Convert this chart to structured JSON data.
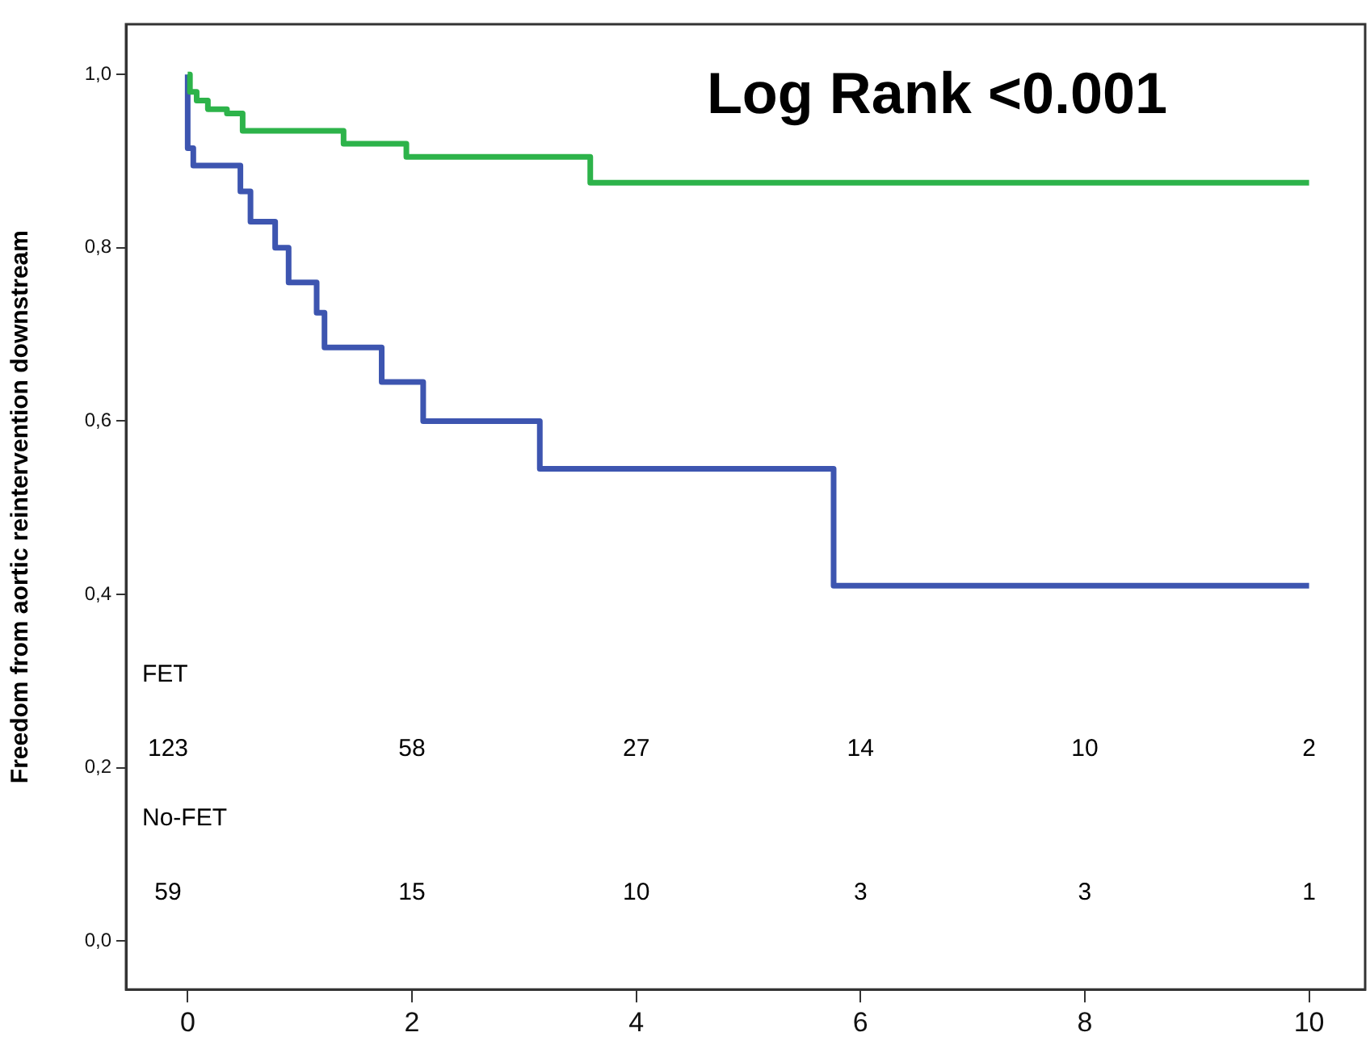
{
  "chart_data": {
    "type": "step",
    "ylabel": "Freedom from aortic reintervention downstream",
    "xlim": [
      -0.55,
      10.5
    ],
    "xticks": [
      0,
      2,
      4,
      6,
      8,
      10
    ],
    "ylim": [
      -0.056,
      1.058
    ],
    "yticks": [
      {
        "value": 0,
        "label": "0,0"
      },
      {
        "value": 0.2,
        "label": "0,2"
      },
      {
        "value": 0.4,
        "label": "0,4"
      },
      {
        "value": 0.6,
        "label": "0,6"
      },
      {
        "value": 0.8,
        "label": "0,8"
      },
      {
        "value": 1,
        "label": "1,0"
      }
    ],
    "grid": false,
    "legend": false,
    "line_style": "solid",
    "marker": "none",
    "series": [
      {
        "color": "#2db34a",
        "x": [
          0,
          0.02,
          0.08,
          0.18,
          0.35,
          0.49,
          1.39,
          1.95,
          3.59,
          10
        ],
        "values": [
          1,
          0.98,
          0.97,
          0.96,
          0.955,
          0.935,
          0.92,
          0.905,
          0.875,
          0.875
        ]
      },
      {
        "color": "#3d55b0",
        "x": [
          0,
          0,
          0.05,
          0.47,
          0.56,
          0.78,
          0.9,
          1.15,
          1.22,
          1.73,
          2.1,
          3.14,
          5.76,
          10
        ],
        "values": [
          1,
          0.915,
          0.895,
          0.865,
          0.83,
          0.8,
          0.76,
          0.725,
          0.685,
          0.645,
          0.6,
          0.545,
          0.41,
          0.41
        ]
      }
    ],
    "annotations": [
      "Log Rank <0.001",
      "FET",
      "123",
      "58",
      "27",
      "14",
      "10",
      "2",
      "No-FET",
      "59",
      "15",
      "10",
      "3",
      "3",
      "1"
    ]
  }
}
